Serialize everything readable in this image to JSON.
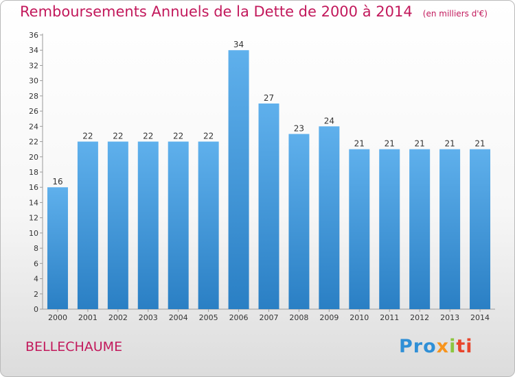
{
  "header": {
    "title": "Remboursements Annuels de la Dette de 2000 à 2014",
    "unit": "(en milliers d'€)"
  },
  "footer": {
    "commune": "BELLECHAUME",
    "logo": {
      "p1": "Pro",
      "p2": "x",
      "p3": "i",
      "p4": "ti"
    }
  },
  "colors": {
    "title": "#c2185b",
    "bar_light": "#5fb0ec",
    "bar_dark": "#2a7fc4"
  },
  "chart_data": {
    "type": "bar",
    "title": "Remboursements Annuels de la Dette de 2000 à 2014",
    "subtitle": "(en milliers d'€)",
    "xlabel": "",
    "ylabel": "",
    "categories": [
      "2000",
      "2001",
      "2002",
      "2003",
      "2004",
      "2005",
      "2006",
      "2007",
      "2008",
      "2009",
      "2010",
      "2011",
      "2012",
      "2013",
      "2014"
    ],
    "values": [
      16,
      22,
      22,
      22,
      22,
      22,
      34,
      27,
      23,
      24,
      21,
      21,
      21,
      21,
      21
    ],
    "ylim": [
      0,
      36
    ],
    "yticks": [
      0,
      2,
      4,
      6,
      8,
      10,
      12,
      14,
      16,
      18,
      20,
      22,
      24,
      26,
      28,
      30,
      32,
      34,
      36
    ],
    "grid": false,
    "legend": "none"
  }
}
